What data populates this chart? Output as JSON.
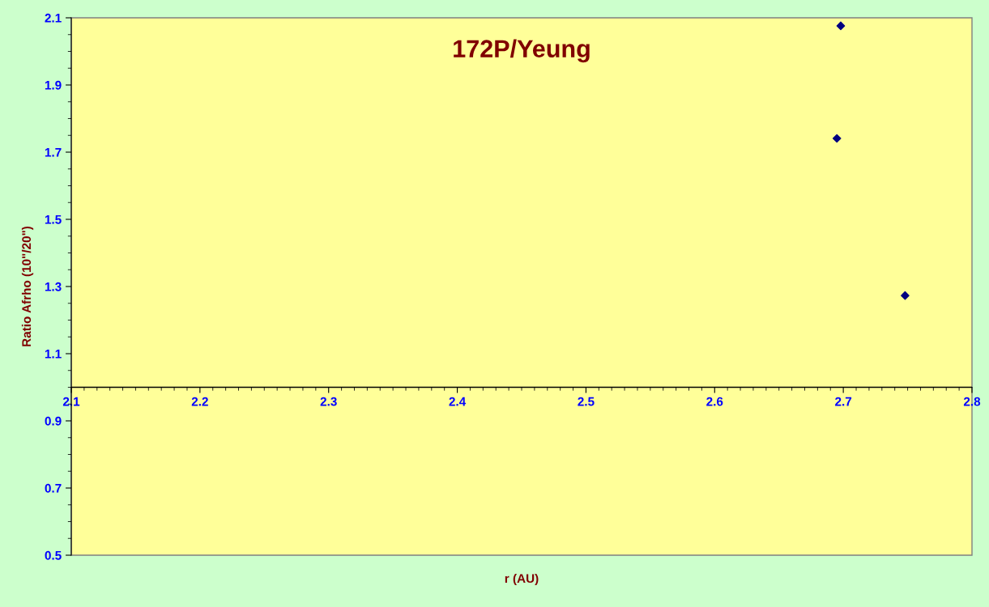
{
  "chart_data": {
    "type": "scatter",
    "title": "172P/Yeung",
    "xlabel": "r (AU)",
    "ylabel": "Ratio Afrho (10\"/20\")",
    "series": [
      {
        "color": "#000080",
        "x": [
          2.698,
          2.695,
          2.748
        ],
        "values": [
          2.076,
          1.741,
          1.273
        ]
      }
    ],
    "xlim": [
      2.1,
      2.8
    ],
    "xticks": [
      2.1,
      2.2,
      2.3,
      2.4,
      2.5,
      2.6,
      2.7,
      2.8
    ],
    "ylim": [
      0.5,
      2.1
    ],
    "yticks": [
      0.5,
      0.7,
      0.9,
      1.1,
      1.3,
      1.5,
      1.7,
      1.9,
      2.1
    ],
    "ref_lines": [
      {
        "axis": "y",
        "value": 1.0,
        "color": "#000000"
      }
    ],
    "marker": "diamond",
    "grid": false,
    "legend": false
  }
}
